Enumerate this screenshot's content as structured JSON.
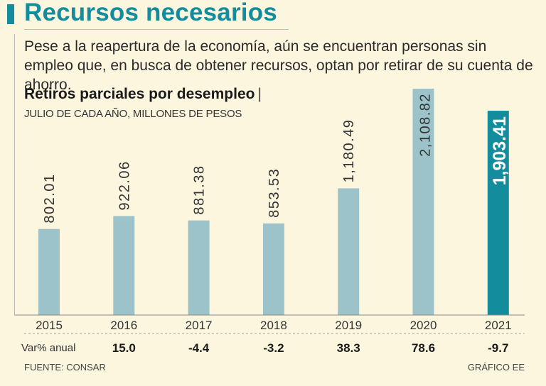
{
  "header": {
    "title": "Recursos necesarios",
    "subtitle": "Pese a la reapertura de la economía, aún se encuentran personas sin empleo que, en busca de obtener recursos, optan por retirar de su cuenta de ahorro."
  },
  "chart_data": {
    "type": "bar",
    "title": "Retiros parciales por desempleo",
    "title_separator": "|",
    "subtitle": "JULIO DE CADA AÑO, MILLONES DE PESOS",
    "categories": [
      "2015",
      "2016",
      "2017",
      "2018",
      "2019",
      "2020",
      "2021"
    ],
    "values": [
      802.01,
      922.06,
      881.38,
      853.53,
      1180.49,
      2108.82,
      1903.41
    ],
    "value_labels": [
      "802.01",
      "922.06",
      "881.38",
      "853.53",
      "1,180.49",
      "2,108.82",
      "1,903.41"
    ],
    "highlight_index": 6,
    "ylim": [
      0,
      2108.82
    ],
    "colors": {
      "bar": "#9bc3c9",
      "highlight": "#138c9e",
      "label": "#333333",
      "highlight_label": "#ffffff"
    },
    "annual_change": {
      "label": "Var% anual",
      "values": [
        "15.0",
        "-4.4",
        "-3.2",
        "38.3",
        "78.6",
        "-9.7"
      ]
    }
  },
  "footer": {
    "source": "FUENTE: CONSAR",
    "credit": "GRÁFICO EE"
  }
}
